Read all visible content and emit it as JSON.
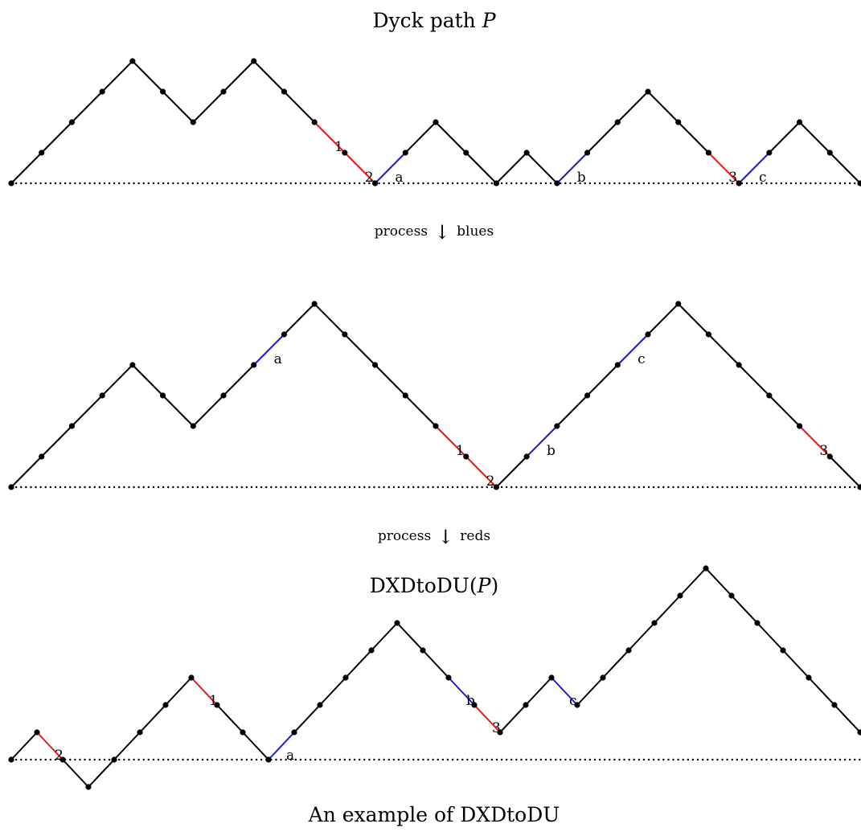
{
  "title_top": {
    "prefix": "Dyck path ",
    "var": "P"
  },
  "title_bottom": {
    "prefix": "DXDtoDU(",
    "var": "P",
    "suffix": ")"
  },
  "caption": "An example of DXDtoDU",
  "arrows": [
    {
      "word": "process",
      "symbol": "↓",
      "tail": "blues"
    },
    {
      "word": "process",
      "symbol": "↓",
      "tail": "reds"
    }
  ],
  "colors": {
    "path": "#000000",
    "red": "#e8191e",
    "blue": "#1a1ad8",
    "baseline": "#000000"
  },
  "paths": [
    {
      "name": "top",
      "steps": "UUUUDDUUDDDDUUDDUDUUUDDDUUDD",
      "colored": [
        {
          "step": 10,
          "color": "red",
          "label": "1"
        },
        {
          "step": 11,
          "color": "red",
          "label": "2"
        },
        {
          "step": 12,
          "color": "blue",
          "label": "a"
        },
        {
          "step": 18,
          "color": "blue",
          "label": "b"
        },
        {
          "step": 23,
          "color": "red",
          "label": "3"
        },
        {
          "step": 24,
          "color": "blue",
          "label": "c"
        }
      ]
    },
    {
      "name": "middle",
      "steps": "UUUUDDUUUUDDDDDDUUUUUUDDDDDD",
      "colored": [
        {
          "step": 8,
          "color": "blue",
          "label": "a"
        },
        {
          "step": 14,
          "color": "red",
          "label": "1"
        },
        {
          "step": 15,
          "color": "red",
          "label": "2"
        },
        {
          "step": 17,
          "color": "blue",
          "label": "b"
        },
        {
          "step": 20,
          "color": "blue",
          "label": "c"
        },
        {
          "step": 26,
          "color": "red",
          "label": "3"
        }
      ]
    },
    {
      "name": "bottom",
      "steps": "UDDUUUUDDDUUUUUDDDDUUDUUUUUDDDDDD",
      "colored": [
        {
          "step": 1,
          "color": "red",
          "label": "2"
        },
        {
          "step": 7,
          "color": "red",
          "label": "1"
        },
        {
          "step": 10,
          "color": "blue",
          "label": "a"
        },
        {
          "step": 17,
          "color": "blue",
          "label": "b"
        },
        {
          "step": 18,
          "color": "red",
          "label": "3"
        },
        {
          "step": 21,
          "color": "blue",
          "label": "c"
        }
      ]
    }
  ]
}
